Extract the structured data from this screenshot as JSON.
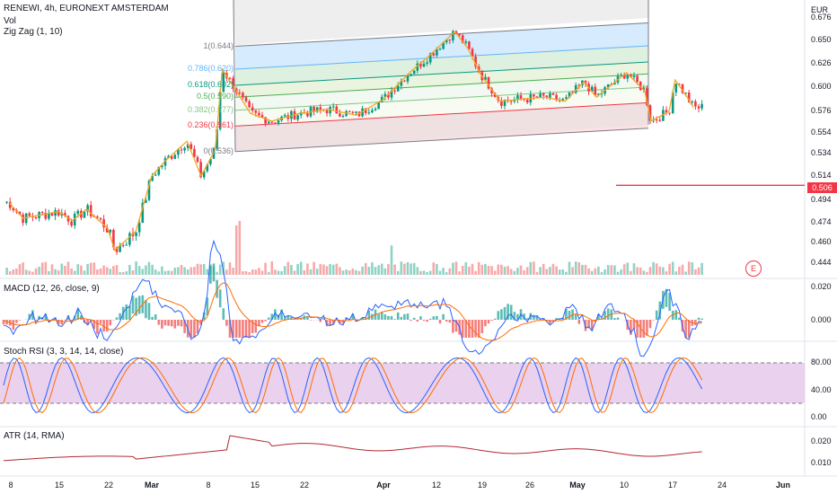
{
  "header": {
    "title": "RENEWI, 4h, EURONEXT AMSTERDAM",
    "vol": "Vol",
    "zigzag": "Zig Zag (1, 10)",
    "currency": "EUR"
  },
  "indicators": {
    "macd": "MACD (12, 26, close, 9)",
    "stoch": "Stoch RSI (3, 3, 14, 14, close)",
    "atr": "ATR (14, RMA)"
  },
  "current_price": "0.506",
  "earnings_badge": "E",
  "price_axis": [
    "0.676",
    "0.650",
    "0.626",
    "0.600",
    "0.576",
    "0.554",
    "0.534",
    "0.514",
    "0.494",
    "0.474",
    "0.460",
    "0.444"
  ],
  "macd_axis": [
    "0.020",
    "0.000"
  ],
  "stoch_axis": [
    "80.00",
    "40.00",
    "0.00"
  ],
  "atr_axis": [
    "0.020",
    "0.010"
  ],
  "time_axis": [
    {
      "label": "8",
      "bold": false
    },
    {
      "label": "15",
      "bold": false
    },
    {
      "label": "22",
      "bold": false
    },
    {
      "label": "Mar",
      "bold": true
    },
    {
      "label": "8",
      "bold": false
    },
    {
      "label": "15",
      "bold": false
    },
    {
      "label": "22",
      "bold": false
    },
    {
      "label": "Apr",
      "bold": true
    },
    {
      "label": "12",
      "bold": false
    },
    {
      "label": "19",
      "bold": false
    },
    {
      "label": "26",
      "bold": false
    },
    {
      "label": "May",
      "bold": true
    },
    {
      "label": "10",
      "bold": false
    },
    {
      "label": "17",
      "bold": false
    },
    {
      "label": "24",
      "bold": false
    },
    {
      "label": "Jun",
      "bold": true
    }
  ],
  "fib_levels": [
    {
      "label": "1(0.644)",
      "value": 0.644,
      "color": "#787b86"
    },
    {
      "label": "0.786(0.620)",
      "value": 0.62,
      "color": "#64b5f6"
    },
    {
      "label": "0.618(0.602)",
      "value": 0.602,
      "color": "#089981"
    },
    {
      "label": "0.5(0.590)",
      "value": 0.59,
      "color": "#4caf50"
    },
    {
      "label": "0.382(0.577)",
      "value": 0.577,
      "color": "#81c784"
    },
    {
      "label": "0.236(0.561)",
      "value": 0.561,
      "color": "#f23645"
    },
    {
      "label": "0(0.536)",
      "value": 0.536,
      "color": "#787b86"
    }
  ],
  "colors": {
    "up": "#089981",
    "down": "#f23645",
    "zigzag": "#f5a623",
    "macd_line": "#2962ff",
    "signal_line": "#ff6d00",
    "stoch_k": "#2962ff",
    "stoch_d": "#ff6d00",
    "stoch_band": "#e1bee7",
    "atr_line": "#b22833"
  },
  "chart_data": {
    "type": "candlestick",
    "title": "RENEWI, 4h, EURONEXT AMSTERDAM",
    "x_range": [
      "Feb 8",
      "Jun"
    ],
    "y_range": [
      0.444,
      0.676
    ],
    "close_path": [
      {
        "x": "Feb 8",
        "y": 0.492
      },
      {
        "x": "Feb 10",
        "y": 0.478
      },
      {
        "x": "Feb 15",
        "y": 0.484
      },
      {
        "x": "Feb 17",
        "y": 0.476
      },
      {
        "x": "Feb 19",
        "y": 0.486
      },
      {
        "x": "Feb 22",
        "y": 0.47
      },
      {
        "x": "Feb 23",
        "y": 0.454
      },
      {
        "x": "Feb 26",
        "y": 0.468
      },
      {
        "x": "Mar 1",
        "y": 0.514
      },
      {
        "x": "Mar 3",
        "y": 0.528
      },
      {
        "x": "Mar 6",
        "y": 0.546
      },
      {
        "x": "Mar 8",
        "y": 0.514
      },
      {
        "x": "Mar 10",
        "y": 0.538
      },
      {
        "x": "Mar 11",
        "y": 0.62
      },
      {
        "x": "Mar 15",
        "y": 0.574
      },
      {
        "x": "Mar 18",
        "y": 0.566
      },
      {
        "x": "Mar 22",
        "y": 0.574
      },
      {
        "x": "Mar 26",
        "y": 0.578
      },
      {
        "x": "Mar 30",
        "y": 0.572
      },
      {
        "x": "Apr 1",
        "y": 0.588
      },
      {
        "x": "Apr 5",
        "y": 0.616
      },
      {
        "x": "Apr 8",
        "y": 0.634
      },
      {
        "x": "Apr 12",
        "y": 0.66
      },
      {
        "x": "Apr 14",
        "y": 0.642
      },
      {
        "x": "Apr 16",
        "y": 0.614
      },
      {
        "x": "Apr 19",
        "y": 0.586
      },
      {
        "x": "Apr 22",
        "y": 0.588
      },
      {
        "x": "Apr 26",
        "y": 0.59
      },
      {
        "x": "Apr 29",
        "y": 0.586
      },
      {
        "x": "May 3",
        "y": 0.606
      },
      {
        "x": "May 5",
        "y": 0.59
      },
      {
        "x": "May 10",
        "y": 0.616
      },
      {
        "x": "May 13",
        "y": 0.596
      },
      {
        "x": "May 14",
        "y": 0.566
      },
      {
        "x": "May 17",
        "y": 0.576
      },
      {
        "x": "May 18",
        "y": 0.608
      },
      {
        "x": "May 20",
        "y": 0.59
      },
      {
        "x": "May 21",
        "y": 0.58
      }
    ],
    "current_value": 0.506,
    "fib_retracement": [
      0.644,
      0.62,
      0.602,
      0.59,
      0.577,
      0.561,
      0.536
    ]
  }
}
